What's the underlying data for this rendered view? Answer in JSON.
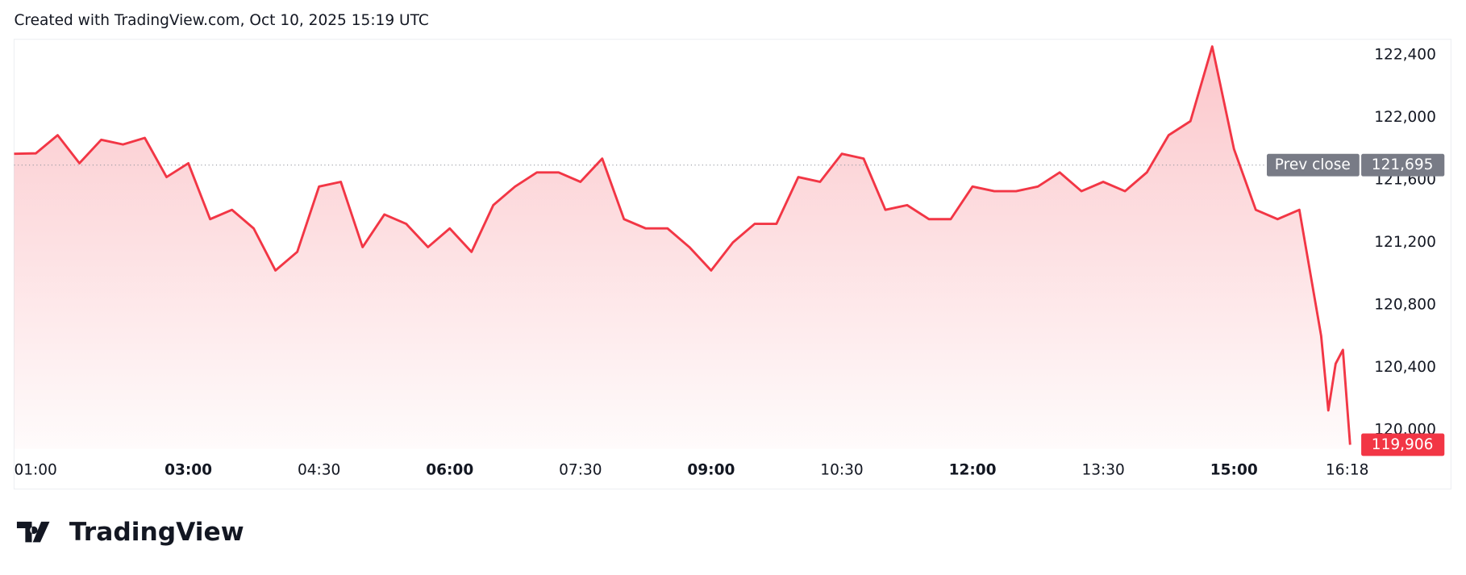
{
  "header": "Created with TradingView.com, Oct 10, 2025 15:19 UTC",
  "logo": "TradingView",
  "chart_data": {
    "type": "area",
    "x": [
      "01:00",
      "01:15",
      "01:30",
      "01:45",
      "02:00",
      "02:15",
      "02:30",
      "02:45",
      "03:00",
      "03:15",
      "03:30",
      "03:45",
      "04:00",
      "04:15",
      "04:30",
      "04:45",
      "05:00",
      "05:15",
      "05:30",
      "05:45",
      "06:00",
      "06:15",
      "06:30",
      "06:45",
      "07:00",
      "07:15",
      "07:30",
      "07:45",
      "08:00",
      "08:15",
      "08:30",
      "08:45",
      "09:00",
      "09:15",
      "09:30",
      "09:45",
      "10:00",
      "10:15",
      "10:30",
      "10:45",
      "11:00",
      "11:15",
      "11:30",
      "11:45",
      "12:00",
      "12:15",
      "12:30",
      "12:45",
      "13:00",
      "13:15",
      "13:30",
      "13:45",
      "14:00",
      "14:15",
      "14:30",
      "14:45",
      "15:00",
      "15:15",
      "15:30",
      "15:45",
      "16:00",
      "16:05",
      "16:10",
      "16:15",
      "16:20"
    ],
    "values": [
      121767,
      121770,
      121886,
      121707,
      121857,
      121827,
      121869,
      121618,
      121707,
      121349,
      121409,
      121290,
      121021,
      121140,
      121558,
      121588,
      121170,
      121379,
      121319,
      121170,
      121290,
      121140,
      121439,
      121558,
      121648,
      121648,
      121588,
      121737,
      121349,
      121290,
      121290,
      121170,
      121021,
      121200,
      121319,
      121319,
      121618,
      121588,
      121767,
      121737,
      121409,
      121439,
      121349,
      121349,
      121558,
      121528,
      121528,
      121558,
      121648,
      121528,
      121588,
      121528,
      121648,
      121886,
      121976,
      122454,
      121797,
      121409,
      121349,
      121409,
      120603,
      120125,
      120424,
      120513,
      119906
    ],
    "color": "#f23645",
    "xlim": [
      "01:00",
      "16:27"
    ],
    "xticks": [
      "01:00",
      "03:00",
      "04:30",
      "06:00",
      "07:30",
      "09:00",
      "10:30",
      "12:00",
      "13:30",
      "15:00",
      "16:18"
    ],
    "ylim": [
      119880,
      122500
    ],
    "yticks": [
      {
        "value": 120000,
        "label": "120,000"
      },
      {
        "value": 120400,
        "label": "120,400"
      },
      {
        "value": 120800,
        "label": "120,800"
      },
      {
        "value": 121200,
        "label": "121,200"
      },
      {
        "value": 121600,
        "label": "121,600"
      },
      {
        "value": 122000,
        "label": "122,000"
      },
      {
        "value": 122400,
        "label": "122,400"
      }
    ],
    "prev_close": {
      "label": "Prev close",
      "value": 121695,
      "value_label": "121,695"
    },
    "last_value_label": "119,906"
  }
}
